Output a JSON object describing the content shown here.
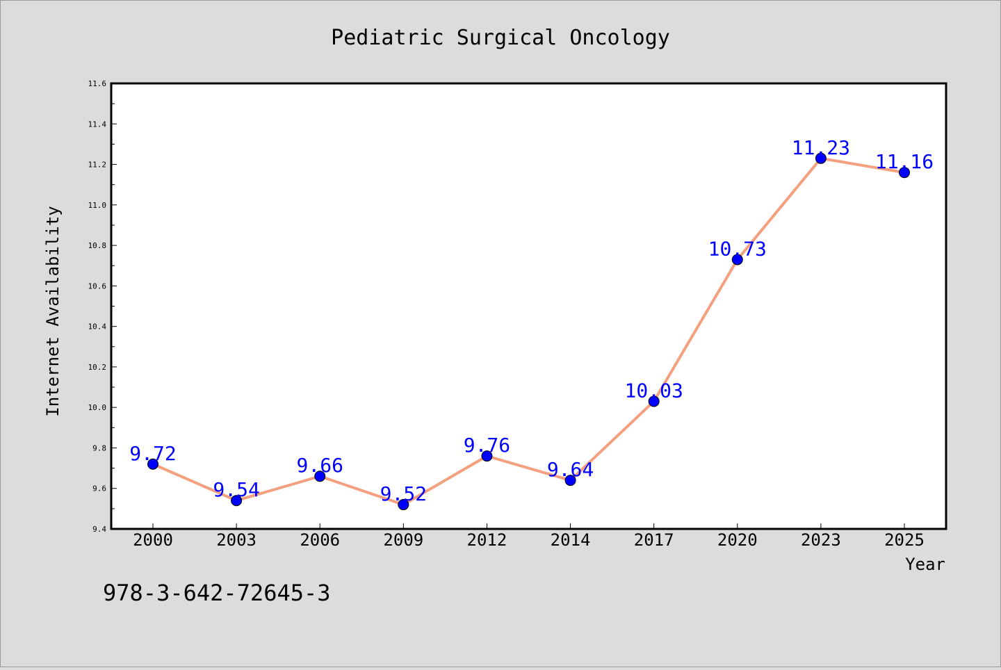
{
  "chart_data": {
    "type": "line",
    "title": "Pediatric Surgical Oncology",
    "xlabel": "Year",
    "ylabel": "Internet Availability",
    "categories": [
      "2000",
      "2003",
      "2006",
      "2009",
      "2012",
      "2014",
      "2017",
      "2020",
      "2023",
      "2025"
    ],
    "series": [
      {
        "values": [
          9.72,
          9.54,
          9.66,
          9.52,
          9.76,
          9.64,
          10.03,
          10.73,
          11.23,
          11.16
        ]
      }
    ],
    "data_labels": [
      "9.72",
      "9.54",
      "9.66",
      "9.52",
      "9.76",
      "9.64",
      "10.03",
      "10.73",
      "11.23",
      "11.16"
    ],
    "ylim": [
      9.4,
      11.6
    ],
    "yticks": [
      "9.4",
      "9.6",
      "9.8",
      "10.0",
      "10.2",
      "10.4",
      "10.6",
      "10.8",
      "11.0",
      "11.2",
      "11.4",
      "11.6"
    ],
    "grid": false,
    "legend": "none",
    "colors": {
      "line": "#f4a07e",
      "marker": "#0000ff",
      "label": "#0000ff",
      "background": "#dcdcdc",
      "plot_background": "#ffffff"
    }
  },
  "footer": {
    "isbn": "978-3-642-72645-3"
  }
}
